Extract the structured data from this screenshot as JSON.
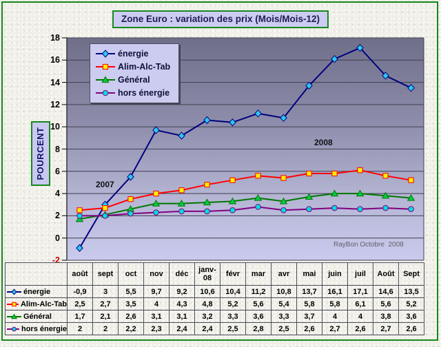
{
  "header": {
    "title": "Zone Euro : variation des prix (Mois/Mois-12)"
  },
  "y_axis": {
    "label": "POURCENT",
    "min": -2,
    "max": 18,
    "step": 2,
    "negative_tick_color": "#cc0000"
  },
  "annotations": {
    "year_left": "2007",
    "year_right": "2008",
    "credit": "RayBon Octobre  2008"
  },
  "colors": {
    "frame_green": "#15881c",
    "box_lavender": "#ccccf2",
    "plot_gradient_top": "#6f6f8a",
    "plot_gradient_bottom": "#cacaee",
    "gridline": "#3f3f4f"
  },
  "chart_data": {
    "type": "line",
    "title": "Zone Euro : variation des prix (Mois/Mois-12)",
    "ylabel": "POURCENT",
    "ylim": [
      -2,
      18
    ],
    "ytick_step": 2,
    "grid": true,
    "legend_position": "upper-left-inside",
    "categories": [
      "août",
      "sept",
      "oct",
      "nov",
      "déc",
      "janv-08",
      "févr",
      "mar",
      "avr",
      "mai",
      "juin",
      "juil",
      "Août",
      "Sept"
    ],
    "series": [
      {
        "name": "énergie",
        "marker": "diamond",
        "line_color": "#000080",
        "marker_fill": "#2ec6f0",
        "values": [
          -0.9,
          3,
          5.5,
          9.7,
          9.2,
          10.6,
          10.4,
          11.2,
          10.8,
          13.7,
          16.1,
          17.1,
          14.6,
          13.5
        ],
        "display": [
          "-0,9",
          "3",
          "5,5",
          "9,7",
          "9,2",
          "10,6",
          "10,4",
          "11,2",
          "10,8",
          "13,7",
          "16,1",
          "17,1",
          "14,6",
          "13,5"
        ]
      },
      {
        "name": "Alim-Alc-Tab",
        "marker": "square",
        "line_color": "#ff0000",
        "marker_fill": "#ffee00",
        "values": [
          2.5,
          2.7,
          3.5,
          4,
          4.3,
          4.8,
          5.2,
          5.6,
          5.4,
          5.8,
          5.8,
          6.1,
          5.6,
          5.2
        ],
        "display": [
          "2,5",
          "2,7",
          "3,5",
          "4",
          "4,3",
          "4,8",
          "5,2",
          "5,6",
          "5,4",
          "5,8",
          "5,8",
          "6,1",
          "5,6",
          "5,2"
        ]
      },
      {
        "name": "Général",
        "marker": "triangle",
        "line_color": "#007700",
        "marker_fill": "#00cc44",
        "values": [
          1.7,
          2.1,
          2.6,
          3.1,
          3.1,
          3.2,
          3.3,
          3.6,
          3.3,
          3.7,
          4,
          4,
          3.8,
          3.6
        ],
        "display": [
          "1,7",
          "2,1",
          "2,6",
          "3,1",
          "3,1",
          "3,2",
          "3,3",
          "3,6",
          "3,3",
          "3,7",
          "4",
          "4",
          "3,8",
          "3,6"
        ]
      },
      {
        "name": "hors énergie",
        "marker": "circle",
        "line_color": "#800080",
        "marker_fill": "#00dede",
        "values": [
          2,
          2,
          2.2,
          2.3,
          2.4,
          2.4,
          2.5,
          2.8,
          2.5,
          2.6,
          2.7,
          2.6,
          2.7,
          2.6
        ],
        "display": [
          "2",
          "2",
          "2,2",
          "2,3",
          "2,4",
          "2,4",
          "2,5",
          "2,8",
          "2,5",
          "2,6",
          "2,7",
          "2,6",
          "2,7",
          "2,6"
        ]
      }
    ]
  }
}
